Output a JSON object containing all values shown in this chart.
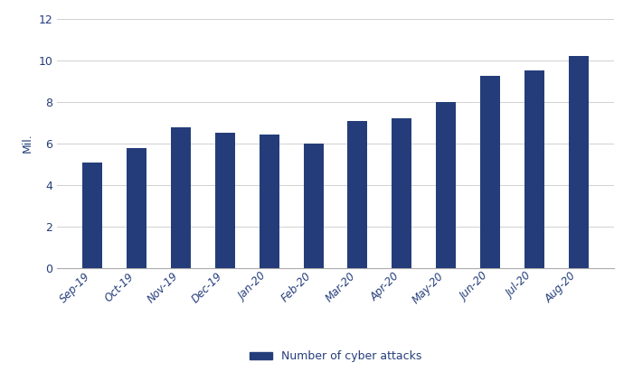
{
  "categories": [
    "Sep-19",
    "Oct-19",
    "Nov-19",
    "Dec-19",
    "Jan-20",
    "Feb-20",
    "Mar-20",
    "Apr-20",
    "May-20",
    "Jun-20",
    "Jul-20",
    "Aug-20"
  ],
  "values": [
    5.05,
    5.75,
    6.75,
    6.5,
    6.4,
    6.0,
    7.05,
    7.2,
    8.0,
    9.25,
    9.5,
    10.2
  ],
  "bar_color": "#243d7a",
  "ylabel": "Mil.",
  "ylim": [
    0,
    12
  ],
  "yticks": [
    0,
    2,
    4,
    6,
    8,
    10,
    12
  ],
  "legend_label": "Number of cyber attacks",
  "legend_color": "#243d7a",
  "background_color": "#ffffff",
  "grid_color": "#d0d0d0",
  "tick_label_color": "#243d7a",
  "bar_width": 0.45
}
